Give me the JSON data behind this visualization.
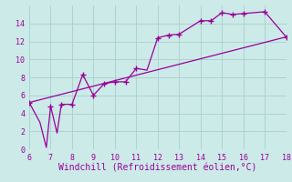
{
  "xlabel": "Windchill (Refroidissement éolien,°C)",
  "background_color": "#cceae8",
  "grid_color": "#aad4d0",
  "line_color": "#990099",
  "xlim": [
    6,
    18
  ],
  "ylim": [
    0,
    16
  ],
  "xticks": [
    6,
    7,
    8,
    9,
    10,
    11,
    12,
    13,
    14,
    15,
    16,
    17,
    18
  ],
  "yticks": [
    0,
    2,
    4,
    6,
    8,
    10,
    12,
    14
  ],
  "series1_x": [
    6,
    6.5,
    6.8,
    7.0,
    7.3,
    7.5,
    8.0,
    8.5,
    9.0,
    9.5,
    10.0,
    10.5,
    11.0,
    11.5,
    12.0,
    12.5,
    13.0,
    14.0,
    14.5,
    15.0,
    15.5,
    16.0,
    17.0,
    18.0
  ],
  "series1_y": [
    5.2,
    3.0,
    0.2,
    4.8,
    1.8,
    5.0,
    5.0,
    8.3,
    6.0,
    7.3,
    7.5,
    7.5,
    9.0,
    8.8,
    12.4,
    12.7,
    12.8,
    14.3,
    14.3,
    15.2,
    15.0,
    15.1,
    15.3,
    12.5
  ],
  "series2_x": [
    6,
    18
  ],
  "series2_y": [
    5.2,
    12.5
  ],
  "marker_x": [
    6.0,
    7.0,
    7.5,
    8.0,
    8.5,
    9.0,
    9.5,
    10.0,
    10.5,
    11.0,
    12.0,
    12.5,
    13.0,
    14.0,
    14.5,
    15.0,
    15.5,
    16.0,
    17.0,
    18.0
  ],
  "marker_y": [
    5.2,
    4.8,
    5.0,
    5.0,
    8.3,
    6.0,
    7.3,
    7.5,
    7.5,
    9.0,
    12.4,
    12.7,
    12.8,
    14.3,
    14.3,
    15.2,
    15.0,
    15.1,
    15.3,
    12.5
  ],
  "font_color": "#990099",
  "tick_fontsize": 6,
  "xlabel_fontsize": 7
}
